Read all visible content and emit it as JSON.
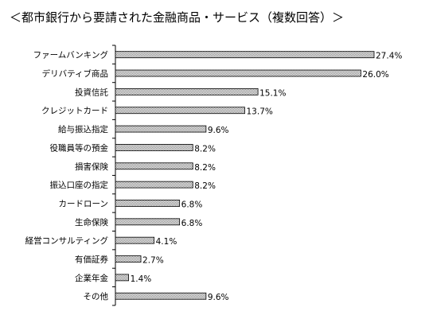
{
  "chart_data": {
    "type": "bar",
    "orientation": "horizontal",
    "title": "＜都市銀行から要請された金融商品・サービス（複数回答）＞",
    "xlabel": "",
    "ylabel": "",
    "xlim": [
      0,
      28.5
    ],
    "grid": false,
    "legend": "none",
    "bar_color": "#808080",
    "categories": [
      "ファームバンキング",
      "デリバティブ商品",
      "投資信託",
      "クレジットカード",
      "給与振込指定",
      "役職員等の預金",
      "損害保険",
      "振込口座の指定",
      "カードローン",
      "生命保険",
      "経営コンサルティング",
      "有価証券",
      "企業年金",
      "その他"
    ],
    "values": [
      27.4,
      26.0,
      15.1,
      13.7,
      9.6,
      8.2,
      8.2,
      8.2,
      6.8,
      6.8,
      4.1,
      2.7,
      1.4,
      9.6
    ],
    "value_labels": [
      "27.4%",
      "26.0%",
      "15.1%",
      "13.7%",
      "9.6%",
      "8.2%",
      "8.2%",
      "8.2%",
      "6.8%",
      "6.8%",
      "4.1%",
      "2.7%",
      "1.4%",
      "9.6%"
    ]
  }
}
